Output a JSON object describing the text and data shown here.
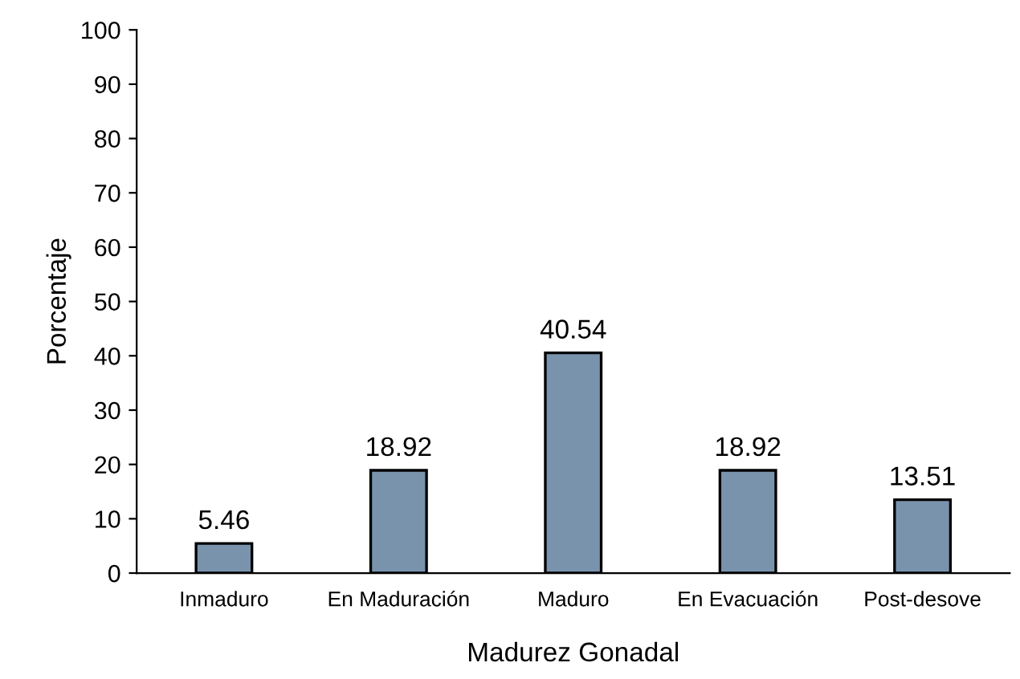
{
  "chart_data": {
    "type": "bar",
    "xlabel": "Madurez Gonadal",
    "ylabel": "Porcentaje",
    "categories": [
      "Inmaduro",
      "En Maduración",
      "Maduro",
      "En Evacuación",
      "Post-desove"
    ],
    "values": [
      5.46,
      18.92,
      40.54,
      18.92,
      13.51
    ],
    "color": "#7a93ad",
    "ylim": [
      0,
      100
    ],
    "yticks": [
      0,
      10,
      20,
      30,
      40,
      50,
      60,
      70,
      80,
      90,
      100
    ],
    "grid": false,
    "legend": false,
    "data_labels": true
  }
}
